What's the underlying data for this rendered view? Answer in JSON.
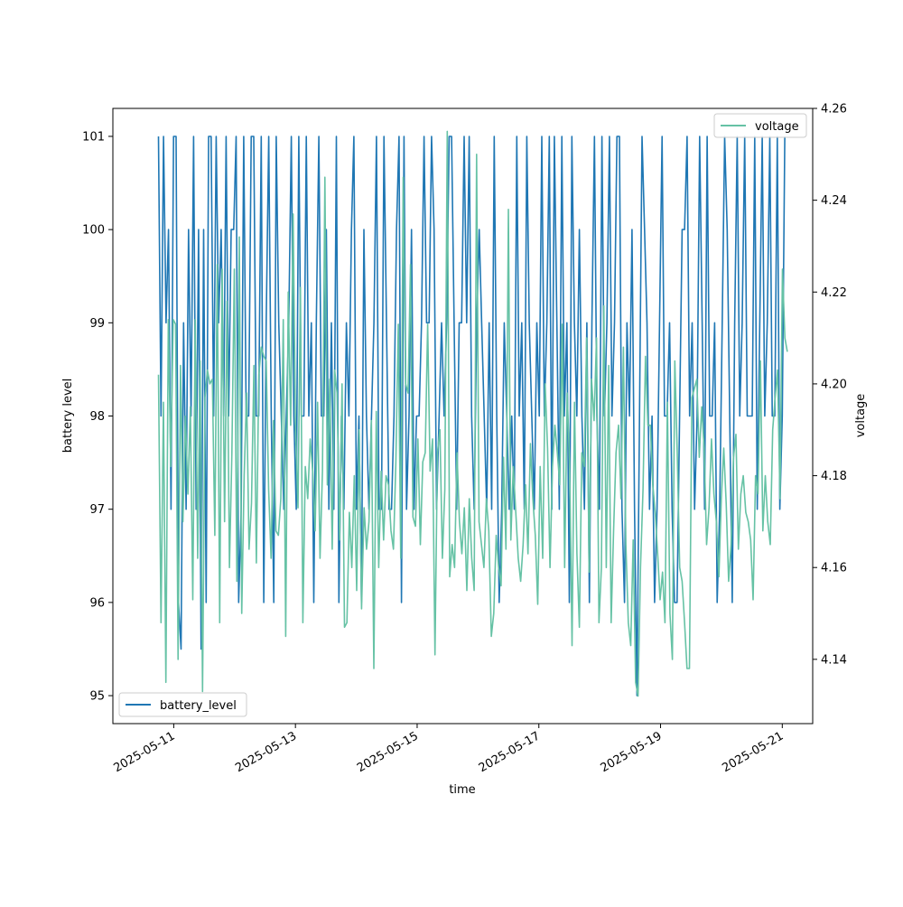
{
  "chart_data": {
    "type": "line",
    "xlabel": "time",
    "ylabel_left": "battery level",
    "ylabel_right": "voltage",
    "x_range": [
      "2025-05-10T00:00:00",
      "2025-05-21T12:00:00"
    ],
    "x_ticks": [
      "2025-05-11",
      "2025-05-13",
      "2025-05-15",
      "2025-05-17",
      "2025-05-19",
      "2025-05-21"
    ],
    "y_left_range": [
      94.7,
      101.3
    ],
    "y_left_ticks": [
      "95",
      "96",
      "97",
      "98",
      "99",
      "100",
      "101"
    ],
    "y_right_range": [
      4.126,
      4.26
    ],
    "y_right_ticks": [
      "4.14",
      "4.16",
      "4.18",
      "4.20",
      "4.22",
      "4.24",
      "4.26"
    ],
    "grid": false,
    "legends": [
      {
        "series": "battery_level",
        "placement": "lower-left"
      },
      {
        "series": "voltage",
        "placement": "upper-right"
      }
    ],
    "series": [
      {
        "name": "battery_level",
        "axis": "left",
        "color": "#1f77b4",
        "x_start": "2025-05-10T18:00:00",
        "x_end": "2025-05-21T01:00:00",
        "values": [
          101,
          98,
          101,
          99,
          100,
          97,
          101,
          101,
          96,
          95.5,
          99,
          97,
          100,
          98,
          101,
          97,
          100,
          95.5,
          100,
          96,
          101,
          101,
          98,
          101,
          99,
          100,
          98,
          101,
          98,
          100,
          100,
          101,
          96,
          97,
          101,
          98,
          98,
          101,
          101,
          98,
          98,
          101,
          96,
          99,
          101,
          98,
          96,
          101,
          99,
          98,
          97,
          98,
          99,
          101,
          98,
          97,
          101,
          98,
          98,
          101,
          98,
          99,
          96,
          99,
          101,
          98,
          98,
          100,
          97,
          99,
          97,
          101,
          96,
          98,
          97,
          99,
          98,
          100,
          101,
          97,
          98,
          96,
          100,
          98,
          97,
          98,
          99,
          101,
          97,
          97,
          101,
          99,
          97,
          97,
          98,
          100,
          101,
          96,
          101,
          97,
          98,
          100,
          97,
          98,
          98,
          99,
          101,
          99,
          99,
          101,
          100,
          97,
          98,
          99,
          98,
          99,
          101,
          101,
          99,
          97,
          99,
          99,
          101,
          99,
          101,
          98,
          97,
          99,
          100,
          99,
          98,
          97,
          99,
          97,
          101,
          98,
          96,
          97,
          99,
          98,
          97,
          98,
          97,
          101,
          98,
          99,
          97,
          101,
          99,
          98,
          97,
          99,
          98,
          101,
          98,
          99,
          101,
          97,
          101,
          99,
          97,
          101,
          98,
          99,
          96,
          101,
          99,
          98,
          100,
          98,
          97,
          99,
          96,
          99,
          101,
          98,
          97,
          101,
          98,
          99,
          101,
          98,
          99,
          101,
          101,
          97,
          96,
          99,
          98,
          100,
          97,
          95,
          98,
          101,
          100,
          99,
          97,
          98,
          96,
          97,
          99,
          101,
          98,
          98,
          99,
          97,
          96,
          96,
          98,
          100,
          100,
          101,
          98,
          99,
          97,
          98,
          101,
          99,
          97,
          101,
          98,
          98,
          99,
          96,
          97,
          99,
          101,
          100,
          98,
          96,
          99,
          101,
          98,
          99,
          101,
          98,
          98,
          98,
          101,
          97,
          99,
          101,
          98,
          99,
          101,
          98,
          98,
          101,
          97,
          98,
          101
        ],
        "note_values_visual_estimate": ""
      },
      {
        "name": "voltage",
        "axis": "right",
        "color": "#66c2a5",
        "x_start": "2025-05-10T18:00:00",
        "x_end": "2025-05-21T02:00:00",
        "values": [
          4.202,
          4.148,
          4.196,
          4.135,
          4.214,
          4.182,
          4.214,
          4.213,
          4.14,
          4.204,
          4.17,
          4.193,
          4.176,
          4.195,
          4.153,
          4.214,
          4.162,
          4.205,
          4.133,
          4.197,
          4.203,
          4.2,
          4.201,
          4.167,
          4.226,
          4.148,
          4.225,
          4.17,
          4.218,
          4.16,
          4.185,
          4.225,
          4.157,
          4.232,
          4.15,
          4.18,
          4.198,
          4.164,
          4.174,
          4.204,
          4.161,
          4.202,
          4.208,
          4.206,
          4.205,
          4.177,
          4.162,
          4.192,
          4.168,
          4.167,
          4.175,
          4.214,
          4.145,
          4.22,
          4.191,
          4.237,
          4.19,
          4.173,
          4.221,
          4.148,
          4.182,
          4.175,
          4.188,
          4.181,
          4.168,
          4.196,
          4.162,
          4.181,
          4.245,
          4.178,
          4.201,
          4.164,
          4.203,
          4.198,
          4.166,
          4.2,
          4.147,
          4.148,
          4.172,
          4.16,
          4.18,
          4.155,
          4.19,
          4.151,
          4.173,
          4.164,
          4.17,
          4.192,
          4.138,
          4.194,
          4.16,
          4.181,
          4.166,
          4.18,
          4.178,
          4.168,
          4.164,
          4.183,
          4.213,
          4.162,
          4.245,
          4.2,
          4.198,
          4.226,
          4.171,
          4.169,
          4.188,
          4.165,
          4.183,
          4.185,
          4.213,
          4.181,
          4.188,
          4.141,
          4.185,
          4.19,
          4.162,
          4.177,
          4.255,
          4.158,
          4.165,
          4.16,
          4.185,
          4.17,
          4.163,
          4.173,
          4.155,
          4.175,
          4.162,
          4.155,
          4.25,
          4.17,
          4.165,
          4.16,
          4.175,
          4.168,
          4.145,
          4.15,
          4.167,
          4.16,
          4.156,
          4.184,
          4.164,
          4.238,
          4.166,
          4.182,
          4.172,
          4.162,
          4.157,
          4.165,
          4.178,
          4.163,
          4.187,
          4.175,
          4.167,
          4.152,
          4.182,
          4.162,
          4.2,
          4.186,
          4.16,
          4.182,
          4.191,
          4.185,
          4.178,
          4.213,
          4.16,
          4.198,
          4.183,
          4.143,
          4.196,
          4.163,
          4.147,
          4.185,
          4.182,
          4.21,
          4.159,
          4.201,
          4.192,
          4.21,
          4.148,
          4.16,
          4.217,
          4.16,
          4.204,
          4.148,
          4.168,
          4.185,
          4.191,
          4.175,
          4.208,
          4.165,
          4.148,
          4.143,
          4.166,
          4.135,
          4.132,
          4.16,
          4.177,
          4.206,
          4.191,
          4.191,
          4.178,
          4.172,
          4.163,
          4.153,
          4.159,
          4.148,
          4.196,
          4.15,
          4.14,
          4.205,
          4.185,
          4.16,
          4.157,
          4.148,
          4.138,
          4.138,
          4.197,
          4.199,
          4.201,
          4.184,
          4.195,
          4.186,
          4.165,
          4.173,
          4.188,
          4.176,
          4.17,
          4.158,
          4.175,
          4.186,
          4.174,
          4.157,
          4.165,
          4.184,
          4.189,
          4.164,
          4.176,
          4.18,
          4.172,
          4.17,
          4.166,
          4.153,
          4.18,
          4.176,
          4.205,
          4.168,
          4.18,
          4.17,
          4.165,
          4.19,
          4.197,
          4.203,
          4.175,
          4.225,
          4.21,
          4.207
        ]
      }
    ]
  }
}
